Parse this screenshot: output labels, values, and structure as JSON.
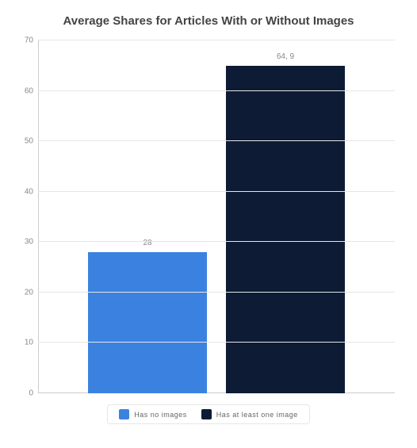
{
  "chart": {
    "type": "bar",
    "title": "Average Shares for Articles With or Without Images",
    "title_fontsize": 15,
    "title_color": "#444444",
    "background_color": "#ffffff",
    "grid_color": "#e6e6e6",
    "axis_color": "#cccccc",
    "tick_label_color": "#888888",
    "tick_label_fontsize": 10,
    "bar_label_fontsize": 10,
    "bar_label_color": "#888888",
    "ylim": [
      0,
      70
    ],
    "ytick_step": 10,
    "yticks": [
      0,
      10,
      20,
      30,
      40,
      50,
      60,
      70
    ],
    "series": [
      {
        "label": "Has no images",
        "value": 28,
        "value_label": "28",
        "color": "#3b82e0"
      },
      {
        "label": "Has at least one image",
        "value": 64.9,
        "value_label": "64, 9",
        "color": "#0d1b34"
      }
    ],
    "legend": {
      "fontsize": 9,
      "text_color": "#666666",
      "border_color": "#e6e6e6"
    }
  }
}
